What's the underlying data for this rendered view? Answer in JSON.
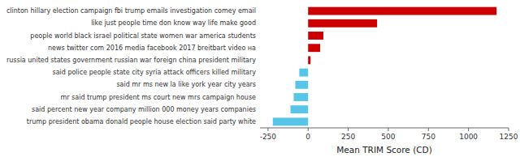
{
  "chart_data": {
    "type": "bar",
    "orientation": "horizontal",
    "categories": [
      "clinton hillary election campaign fbi trump emails investigation comey email",
      "like just people time don know way life make good",
      "people world black israel political state women war america students",
      "news twitter com 2016 media facebook 2017 breitbart video на",
      "russia united states government russian war foreign china president military",
      "said police people state city syria attack officers killed military",
      "said mr ms new la like york year city years",
      "mr said trump president ms court new mrs campaign house",
      "said percent new year company million 000 money years companies",
      "trump president obama donald people house election said party white"
    ],
    "values": [
      1175,
      430,
      95,
      75,
      15,
      -55,
      -80,
      -90,
      -110,
      -220
    ],
    "colors": [
      "#cc0000",
      "#cc0000",
      "#cc0000",
      "#cc0000",
      "#cc0000",
      "#56c5e8",
      "#56c5e8",
      "#56c5e8",
      "#56c5e8",
      "#56c5e8"
    ],
    "xlabel": "Mean TRIM Score (CD)",
    "xlim": [
      -300,
      1250
    ],
    "xticks": [
      -250,
      0,
      250,
      500,
      750,
      1000,
      1250
    ],
    "grid": false
  }
}
